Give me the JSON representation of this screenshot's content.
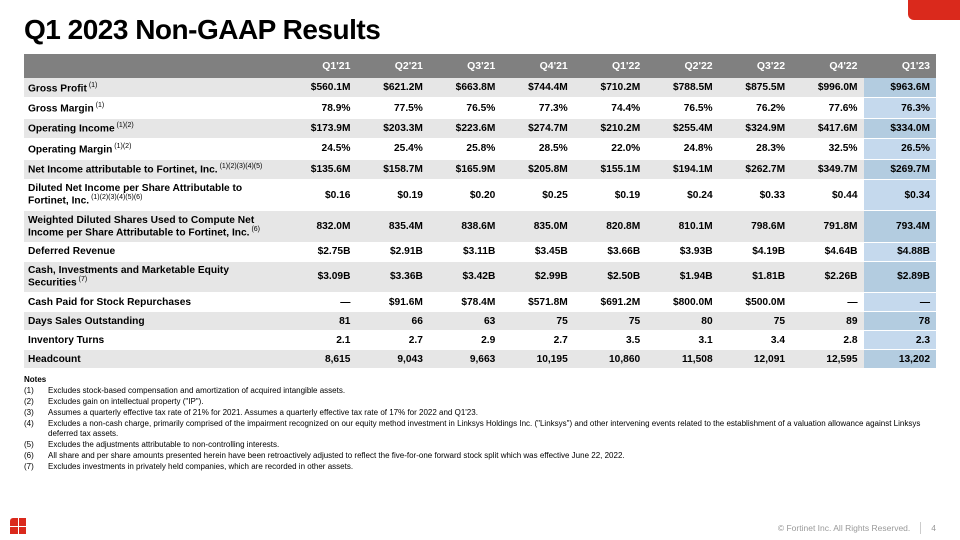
{
  "title": "Q1 2023 Non-GAAP Results",
  "columns": [
    "",
    "Q1'21",
    "Q2'21",
    "Q3'21",
    "Q4'21",
    "Q1'22",
    "Q2'22",
    "Q3'22",
    "Q4'22",
    "Q1'23"
  ],
  "rows": [
    {
      "label": "Gross Profit",
      "sup": "(1)",
      "cells": [
        "$560.1M",
        "$621.2M",
        "$663.8M",
        "$744.4M",
        "$710.2M",
        "$788.5M",
        "$875.5M",
        "$996.0M",
        "$963.6M"
      ],
      "shade": true
    },
    {
      "label": "Gross Margin",
      "sup": "(1)",
      "cells": [
        "78.9%",
        "77.5%",
        "76.5%",
        "77.3%",
        "74.4%",
        "76.5%",
        "76.2%",
        "77.6%",
        "76.3%"
      ],
      "shade": false
    },
    {
      "label": "Operating Income",
      "sup": "(1)(2)",
      "cells": [
        "$173.9M",
        "$203.3M",
        "$223.6M",
        "$274.7M",
        "$210.2M",
        "$255.4M",
        "$324.9M",
        "$417.6M",
        "$334.0M"
      ],
      "shade": true
    },
    {
      "label": "Operating Margin",
      "sup": "(1)(2)",
      "cells": [
        "24.5%",
        "25.4%",
        "25.8%",
        "28.5%",
        "22.0%",
        "24.8%",
        "28.3%",
        "32.5%",
        "26.5%"
      ],
      "shade": false
    },
    {
      "label": "Net Income attributable to Fortinet, Inc.",
      "sup": "(1)(2)(3)(4)(5)",
      "cells": [
        "$135.6M",
        "$158.7M",
        "$165.9M",
        "$205.8M",
        "$155.1M",
        "$194.1M",
        "$262.7M",
        "$349.7M",
        "$269.7M"
      ],
      "shade": true
    },
    {
      "label": "Diluted Net Income per Share Attributable to Fortinet, Inc.",
      "sup": "(1)(2)(3)(4)(5)(6)",
      "cells": [
        "$0.16",
        "$0.19",
        "$0.20",
        "$0.25",
        "$0.19",
        "$0.24",
        "$0.33",
        "$0.44",
        "$0.34"
      ],
      "shade": false
    },
    {
      "label": "Weighted Diluted Shares Used to Compute Net Income per Share Attributable to Fortinet, Inc.",
      "sup": "(6)",
      "cells": [
        "832.0M",
        "835.4M",
        "838.6M",
        "835.0M",
        "820.8M",
        "810.1M",
        "798.6M",
        "791.8M",
        "793.4M"
      ],
      "shade": true
    },
    {
      "label": "Deferred Revenue",
      "sup": "",
      "cells": [
        "$2.75B",
        "$2.91B",
        "$3.11B",
        "$3.45B",
        "$3.66B",
        "$3.93B",
        "$4.19B",
        "$4.64B",
        "$4.88B"
      ],
      "shade": false
    },
    {
      "label": "Cash, Investments and Marketable Equity Securities",
      "sup": "(7)",
      "cells": [
        "$3.09B",
        "$3.36B",
        "$3.42B",
        "$2.99B",
        "$2.50B",
        "$1.94B",
        "$1.81B",
        "$2.26B",
        "$2.89B"
      ],
      "shade": true
    },
    {
      "label": "Cash Paid for Stock Repurchases",
      "sup": "",
      "cells": [
        "—",
        "$91.6M",
        "$78.4M",
        "$571.8M",
        "$691.2M",
        "$800.0M",
        "$500.0M",
        "—",
        "—"
      ],
      "shade": false
    },
    {
      "label": "Days Sales Outstanding",
      "sup": "",
      "cells": [
        "81",
        "66",
        "63",
        "75",
        "75",
        "80",
        "75",
        "89",
        "78"
      ],
      "shade": true
    },
    {
      "label": "Inventory Turns",
      "sup": "",
      "cells": [
        "2.1",
        "2.7",
        "2.9",
        "2.7",
        "3.5",
        "3.1",
        "3.4",
        "2.8",
        "2.3"
      ],
      "shade": false
    },
    {
      "label": "Headcount",
      "sup": "",
      "cells": [
        "8,615",
        "9,043",
        "9,663",
        "10,195",
        "10,860",
        "11,508",
        "12,091",
        "12,595",
        "13,202"
      ],
      "shade": true
    }
  ],
  "notes_title": "Notes",
  "notes": [
    "Excludes stock-based compensation and amortization of acquired intangible assets.",
    "Excludes gain on intellectual property (\"IP\").",
    "Assumes a quarterly effective tax rate of 21% for 2021. Assumes a quarterly effective tax rate of 17% for 2022 and Q1'23.",
    "Excludes a non-cash charge, primarily comprised of the impairment recognized on our equity method investment in Linksys Holdings Inc. (\"Linksys\") and other intervening events related to the establishment of a valuation allowance against Linksys deferred tax assets.",
    "Excludes the adjustments attributable to non-controlling interests.",
    "All share and per share amounts presented herein have been retroactively adjusted to reflect the five-for-one forward stock split which was effective June 22, 2022.",
    "Excludes investments in privately held companies, which are recorded in other assets."
  ],
  "footer_text": "© Fortinet Inc. All Rights Reserved.",
  "page_number": "4"
}
